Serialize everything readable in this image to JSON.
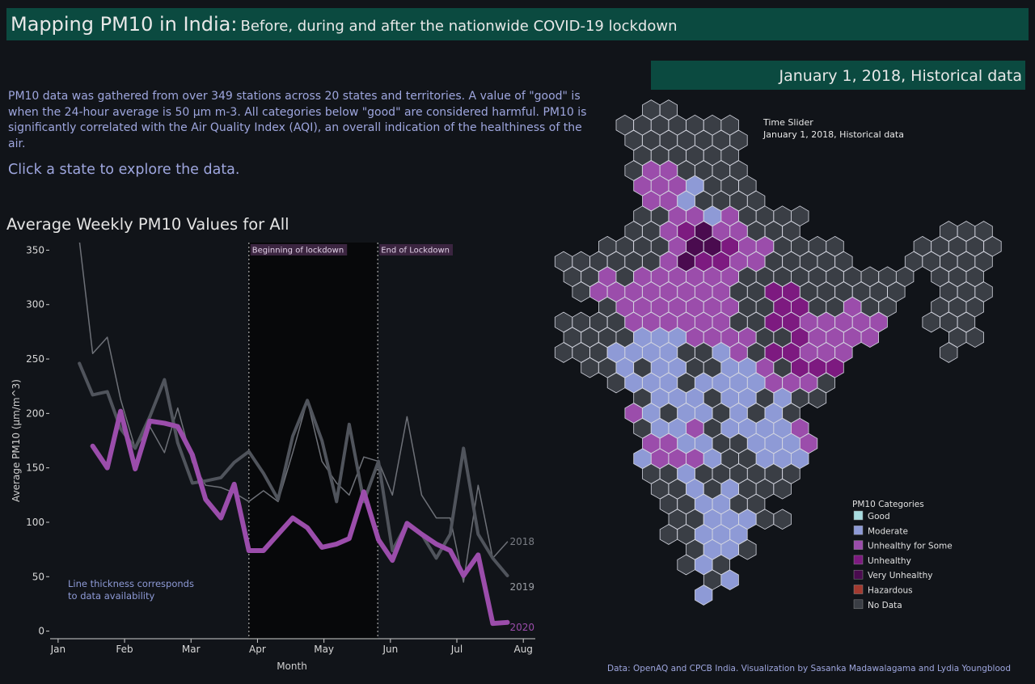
{
  "header": {
    "title": "Mapping PM10 in India:",
    "subtitle": "Before, during and after the nationwide COVID-19 lockdown"
  },
  "date_label": "January 1, 2018, Historical data",
  "description": "PM10 data was gathered from over 349 stations across 20 states and territories. A value of \"good\" is when the 24-hour average is 50 µm m-3. All categories below \"good\" are considered harmful. PM10 is significantly correlated with the Air Quality Index (AQI), an overall indication of the healthiness of the air.",
  "prompt": "Click a state to explore the data.",
  "chart_data": {
    "type": "line",
    "title": "Average Weekly PM10 Values for All",
    "x_label": "Month",
    "y_label": "Average PM10 (µm/m^3)",
    "x": [
      0.32,
      0.52,
      0.74,
      0.94,
      1.16,
      1.38,
      1.6,
      1.8,
      2.02,
      2.22,
      2.45,
      2.65,
      2.87,
      3.09,
      3.31,
      3.53,
      3.75,
      3.97,
      4.19,
      4.38,
      4.6,
      4.82,
      5.03,
      5.25,
      5.47,
      5.69,
      5.9,
      6.1,
      6.32,
      6.54,
      6.76
    ],
    "xlim": [
      -0.12,
      7.18
    ],
    "xticks": [
      {
        "value": 0,
        "label": "Jan"
      },
      {
        "value": 1,
        "label": "Feb"
      },
      {
        "value": 2,
        "label": "Mar"
      },
      {
        "value": 3,
        "label": "Apr"
      },
      {
        "value": 4,
        "label": "May"
      },
      {
        "value": 5,
        "label": "Jun"
      },
      {
        "value": 6,
        "label": "Jul"
      },
      {
        "value": 7,
        "label": "Aug"
      }
    ],
    "ylim": [
      -7,
      357
    ],
    "yticks": [
      0,
      50,
      100,
      150,
      200,
      250,
      300,
      350
    ],
    "series": [
      {
        "name": "2018",
        "color": "#6e7178",
        "width": 1.5,
        "values": [
          359,
          255,
          270,
          213,
          168,
          188,
          164,
          205,
          155,
          134,
          132,
          127,
          119,
          129,
          119,
          164,
          212,
          156,
          136,
          125,
          160,
          156,
          125,
          197,
          125,
          104,
          104,
          45,
          134,
          67,
          82
        ]
      },
      {
        "name": "2019",
        "color": "#50545c",
        "width": 4,
        "values": [
          246,
          217,
          220,
          186,
          168,
          197,
          231,
          173,
          136,
          138,
          141,
          155,
          165,
          145,
          121,
          179,
          212,
          175,
          119,
          190,
          119,
          156,
          74,
          99,
          89,
          67,
          89,
          168,
          89,
          67,
          51
        ]
      },
      {
        "name": "2020",
        "color": "#9b4dab",
        "width": 6,
        "values": [
          null,
          170,
          150,
          202,
          149,
          193,
          191,
          188,
          162,
          121,
          104,
          135,
          74,
          74,
          89,
          104,
          95,
          77,
          80,
          85,
          128,
          84,
          65,
          99,
          89,
          80,
          74,
          51,
          70,
          7,
          8
        ]
      }
    ],
    "lockdown": [
      {
        "label": "Beginning of lockdown",
        "x": 2.87
      },
      {
        "label": "End of Lockdown",
        "x": 4.81
      }
    ],
    "note": "Line thickness corresponds to data availability"
  },
  "map": {
    "slider_title": "Time Slider",
    "slider_value": "January 1, 2018, Historical data",
    "legend_title": "PM10 Categories",
    "categories": [
      {
        "name": "Good",
        "color": "#a8dce0"
      },
      {
        "name": "Moderate",
        "color": "#8e9ad6"
      },
      {
        "name": "Unhealthy for Some",
        "color": "#9b4dab"
      },
      {
        "name": "Unhealthy",
        "color": "#7d1a80"
      },
      {
        "name": "Very Unhealthy",
        "color": "#4a0b4f"
      },
      {
        "name": "Hazardous",
        "color": "#a33a30"
      },
      {
        "name": "No Data",
        "color": "#3a3e45"
      }
    ],
    "rows": [
      ".....66..................",
      "...6666666...............",
      "....6666666..............",
      "....666666...............",
      "....6226666..............",
      "....2221666..............",
      ".....2216666.............",
      "....6622126666...........",
      "....6623422666........666",
      "..66662443226666....66666",
      "66666624332266666...66666",
      "66262222226666666666.666.",
      ".6222222226633666666..666",
      "..62222222663366266..666.",
      "6666222222663322222..666.",
      "666611122226632222....66.",
      "66611116612633222.....6..",
      ".661611661126333.........",
      "...6111611112226.........",
      "....61116116166..........",
      "....2161161616...........",
      "....6112611112...........",
      ".....2211661112..........",
      "....1222166111...........",
      ".....661666666...........",
      ".....66161666............",
      "......661166.............",
      "......6611166............",
      "......66111..............",
      ".......6116..............",
      ".......616...............",
      "........61...............",
      "........1................"
    ]
  },
  "footer": "Data: OpenAQ and CPCB India. Visualization by Sasanka Madawalagama and Lydia Youngblood"
}
